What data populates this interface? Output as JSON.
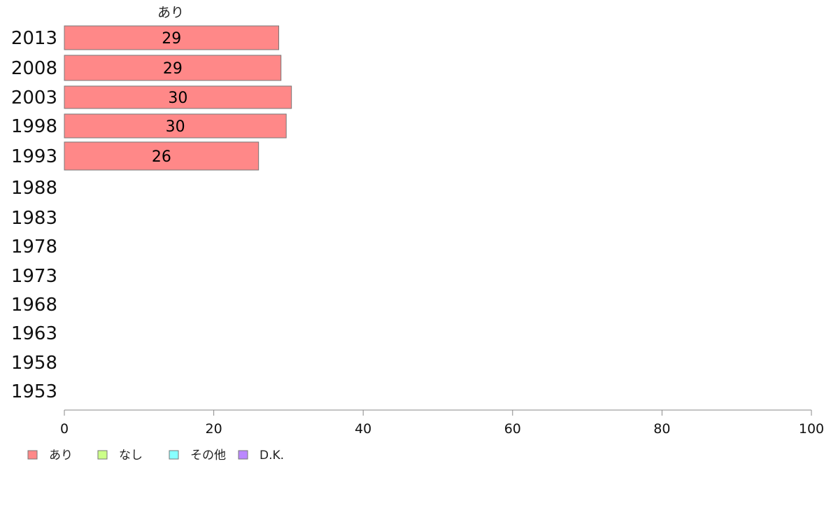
{
  "chart_data": {
    "type": "bar",
    "orientation": "horizontal",
    "stacked": true,
    "categories": [
      "2013",
      "2008",
      "2003",
      "1998",
      "1993",
      "1988",
      "1983",
      "1978",
      "1973",
      "1968",
      "1963",
      "1958",
      "1953"
    ],
    "series": [
      {
        "name": "あり",
        "color": "#ff8888",
        "values": [
          29,
          29,
          30,
          30,
          26,
          null,
          null,
          null,
          null,
          null,
          null,
          null,
          null
        ]
      },
      {
        "name": "なし",
        "color": "#ccff88",
        "values": [
          null,
          null,
          null,
          null,
          null,
          null,
          null,
          null,
          null,
          null,
          null,
          null,
          null
        ]
      },
      {
        "name": "その他",
        "color": "#88ffff",
        "values": [
          null,
          null,
          null,
          null,
          null,
          null,
          null,
          null,
          null,
          null,
          null,
          null,
          null
        ]
      },
      {
        "name": "D.K.",
        "color": "#bb88ff",
        "values": [
          null,
          null,
          null,
          null,
          null,
          null,
          null,
          null,
          null,
          null,
          null,
          null,
          null
        ]
      }
    ],
    "bar_values_precise": [
      28.7,
      29.0,
      30.4,
      29.7,
      26.0
    ],
    "data_labels": [
      "29",
      "29",
      "30",
      "30",
      "26"
    ],
    "column_header": "あり",
    "xlim": [
      0,
      100
    ],
    "xticks": [
      "0",
      "20",
      "40",
      "60",
      "80",
      "100"
    ],
    "grid": false,
    "legend_position": "bottom-left"
  }
}
